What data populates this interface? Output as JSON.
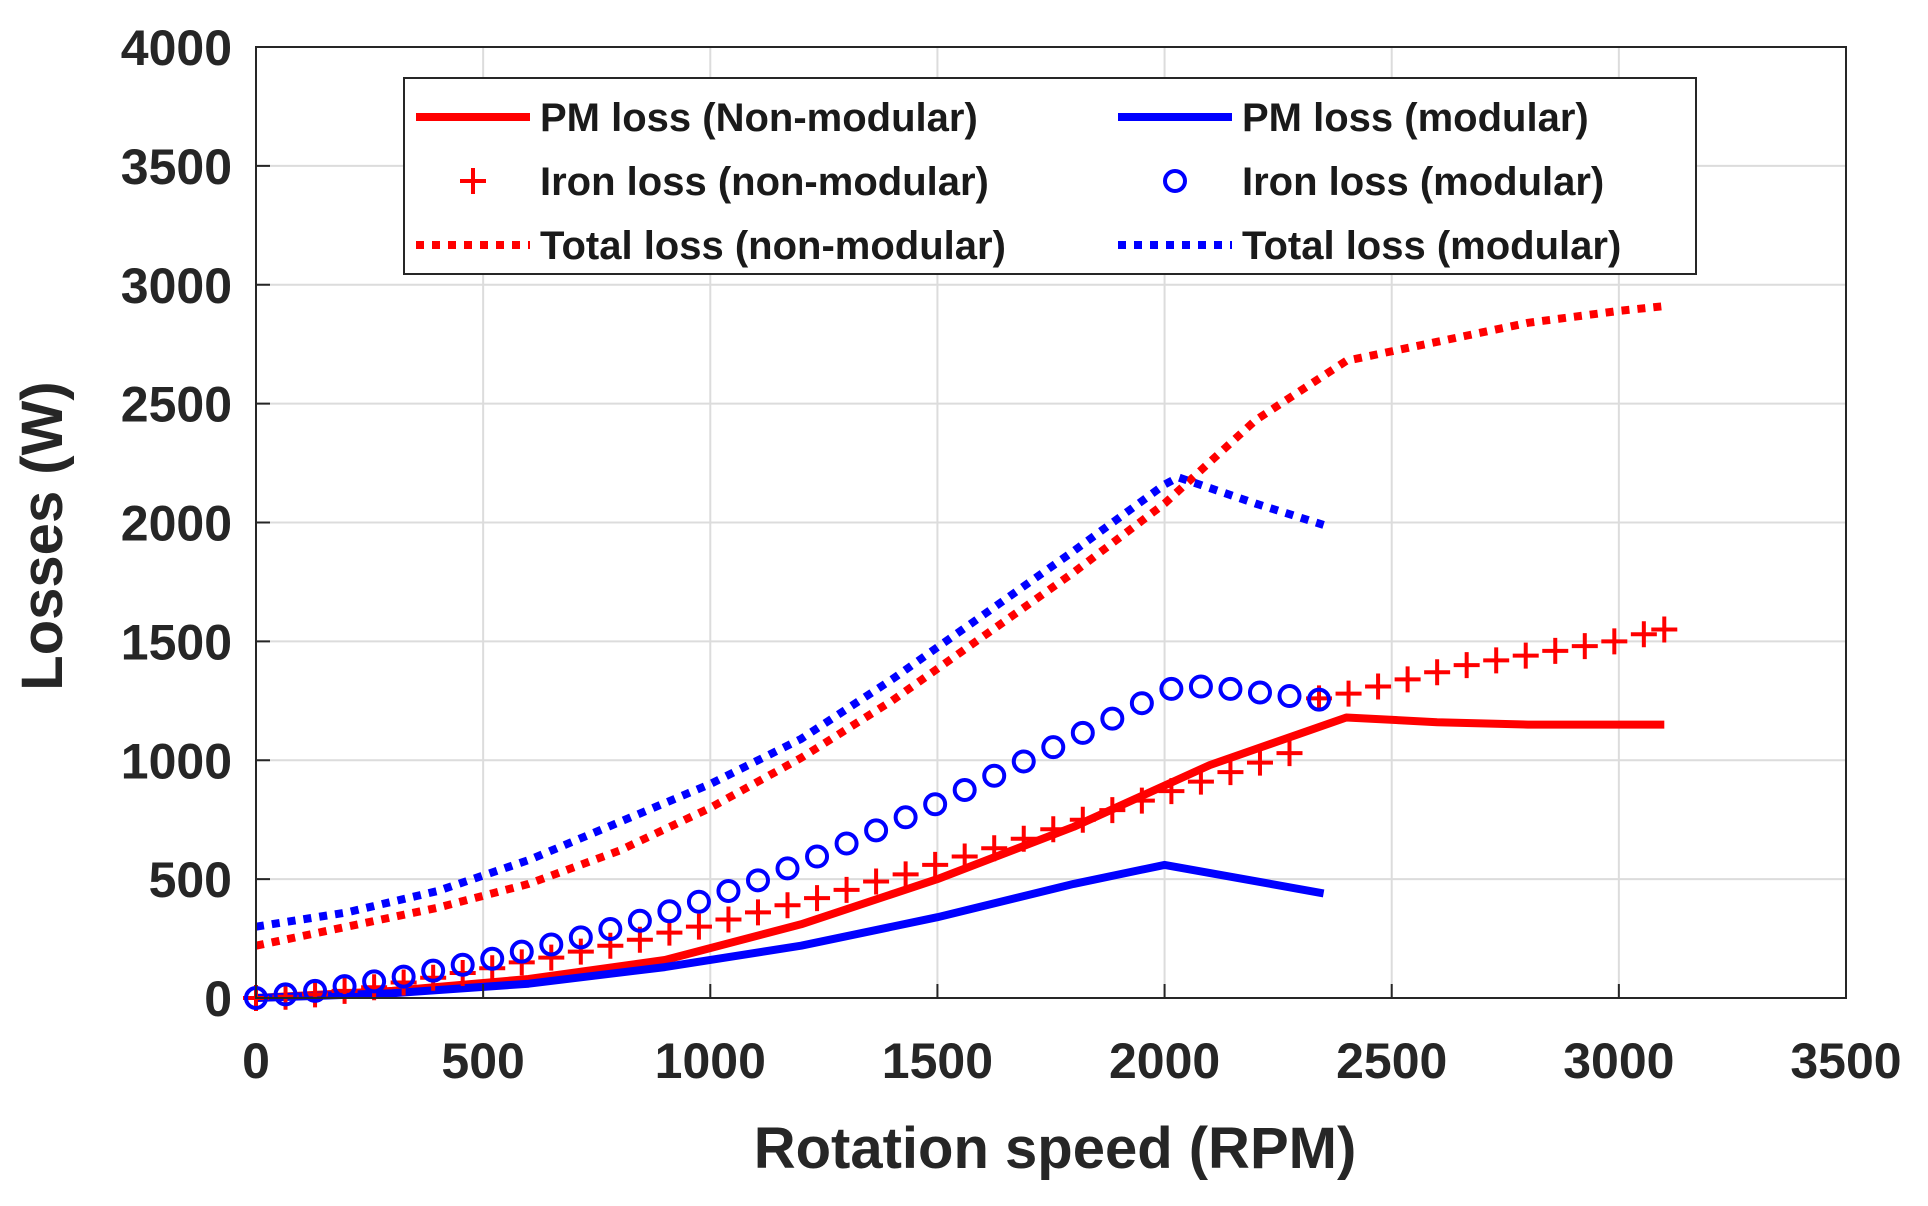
{
  "chart_data": {
    "type": "line",
    "title": "",
    "xlabel": "Rotation speed (RPM)",
    "ylabel": "Losses (W)",
    "xlim": [
      0,
      3500
    ],
    "ylim": [
      0,
      4000
    ],
    "xticks": [
      0,
      500,
      1000,
      1500,
      2000,
      2500,
      3000,
      3500
    ],
    "yticks": [
      0,
      500,
      1000,
      1500,
      2000,
      2500,
      3000,
      3500,
      4000
    ],
    "xtick_labels": [
      "0",
      "500",
      "1000",
      "1500",
      "2000",
      "2500",
      "3000",
      "3500"
    ],
    "ytick_labels": [
      "0",
      "500",
      "1000",
      "1500",
      "2000",
      "2500",
      "3000",
      "3500",
      "4000"
    ],
    "grid": true,
    "legend_position": "top",
    "series": [
      {
        "name": "PM loss (Non-modular)",
        "color": "#ff0000",
        "style": "solid",
        "x": [
          0,
          300,
          600,
          900,
          1200,
          1500,
          1800,
          2100,
          2400,
          2600,
          2800,
          3100
        ],
        "values": [
          0,
          30,
          80,
          160,
          310,
          500,
          720,
          980,
          1180,
          1160,
          1150,
          1150
        ]
      },
      {
        "name": "PM loss (modular)",
        "color": "#0000ff",
        "style": "solid",
        "x": [
          0,
          300,
          600,
          900,
          1200,
          1500,
          1800,
          2000,
          2350
        ],
        "values": [
          0,
          20,
          60,
          130,
          220,
          340,
          480,
          560,
          440
        ]
      },
      {
        "name": "Iron loss (non-modular)",
        "color": "#ff0000",
        "style": "plus",
        "x": [
          0,
          65,
          130,
          195,
          260,
          325,
          390,
          455,
          520,
          585,
          650,
          715,
          780,
          845,
          910,
          975,
          1040,
          1105,
          1170,
          1235,
          1300,
          1365,
          1430,
          1495,
          1560,
          1625,
          1690,
          1755,
          1820,
          1885,
          1950,
          2015,
          2080,
          2145,
          2210,
          2275,
          2340,
          2405,
          2470,
          2535,
          2600,
          2665,
          2730,
          2795,
          2860,
          2925,
          2990,
          3055,
          3100
        ],
        "values": [
          0,
          5,
          15,
          30,
          45,
          65,
          85,
          105,
          125,
          150,
          170,
          195,
          220,
          245,
          275,
          300,
          330,
          360,
          390,
          420,
          455,
          490,
          520,
          560,
          595,
          630,
          670,
          710,
          750,
          790,
          830,
          870,
          910,
          950,
          990,
          1030,
          1260,
          1280,
          1310,
          1340,
          1370,
          1400,
          1420,
          1440,
          1460,
          1480,
          1500,
          1530,
          1550
        ]
      },
      {
        "name": "Iron loss (modular)",
        "color": "#0000ff",
        "style": "circle",
        "x": [
          0,
          65,
          130,
          195,
          260,
          325,
          390,
          455,
          520,
          585,
          650,
          715,
          780,
          845,
          910,
          975,
          1040,
          1105,
          1170,
          1235,
          1300,
          1365,
          1430,
          1495,
          1560,
          1625,
          1690,
          1755,
          1820,
          1885,
          1950,
          2015,
          2080,
          2145,
          2210,
          2275,
          2340
        ],
        "values": [
          0,
          15,
          30,
          50,
          70,
          90,
          115,
          140,
          165,
          195,
          225,
          255,
          290,
          325,
          365,
          405,
          450,
          495,
          545,
          595,
          650,
          705,
          760,
          815,
          875,
          935,
          995,
          1055,
          1115,
          1175,
          1240,
          1300,
          1310,
          1300,
          1285,
          1270,
          1255
        ]
      },
      {
        "name": "Total loss (non-modular)",
        "color": "#ff0000",
        "style": "dotted",
        "x": [
          0,
          200,
          400,
          600,
          800,
          1000,
          1200,
          1400,
          1600,
          1800,
          2000,
          2200,
          2400,
          2600,
          2800,
          3000,
          3100
        ],
        "values": [
          220,
          300,
          380,
          480,
          620,
          800,
          1010,
          1250,
          1520,
          1790,
          2080,
          2430,
          2680,
          2760,
          2840,
          2890,
          2910
        ]
      },
      {
        "name": "Total loss (modular)",
        "color": "#0000ff",
        "style": "dotted",
        "x": [
          0,
          200,
          400,
          600,
          800,
          1000,
          1200,
          1400,
          1600,
          1800,
          2000,
          2030,
          2200,
          2350
        ],
        "values": [
          300,
          360,
          450,
          580,
          740,
          900,
          1090,
          1340,
          1610,
          1880,
          2160,
          2190,
          2080,
          1990
        ]
      }
    ]
  }
}
